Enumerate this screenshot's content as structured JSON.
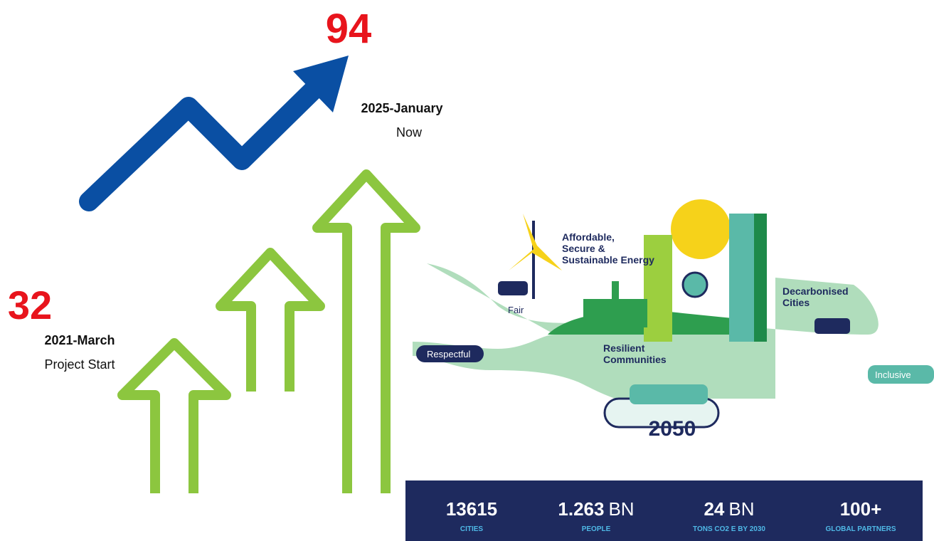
{
  "progress": {
    "end": {
      "count": "94",
      "date": "2025-January",
      "caption": "Now"
    },
    "start": {
      "count": "32",
      "date": "2021-March",
      "caption": "Project Start"
    }
  },
  "illustration": {
    "labels": [
      "Affordable,",
      "Secure &",
      "Sustainable Energy",
      "Fair",
      "Decarbonised",
      "Cities",
      "Respectful",
      "Resilient",
      "Communities",
      "Inclusive",
      "2050"
    ]
  },
  "stats": [
    {
      "value": "13615",
      "label": "CITIES"
    },
    {
      "value": "1.263",
      "unit": "BN",
      "label": "PEOPLE"
    },
    {
      "value": "24",
      "unit": "BN",
      "label": "TONS CO2 E BY 2030"
    },
    {
      "value": "100+",
      "label": "GLOBAL PARTNERS"
    }
  ]
}
